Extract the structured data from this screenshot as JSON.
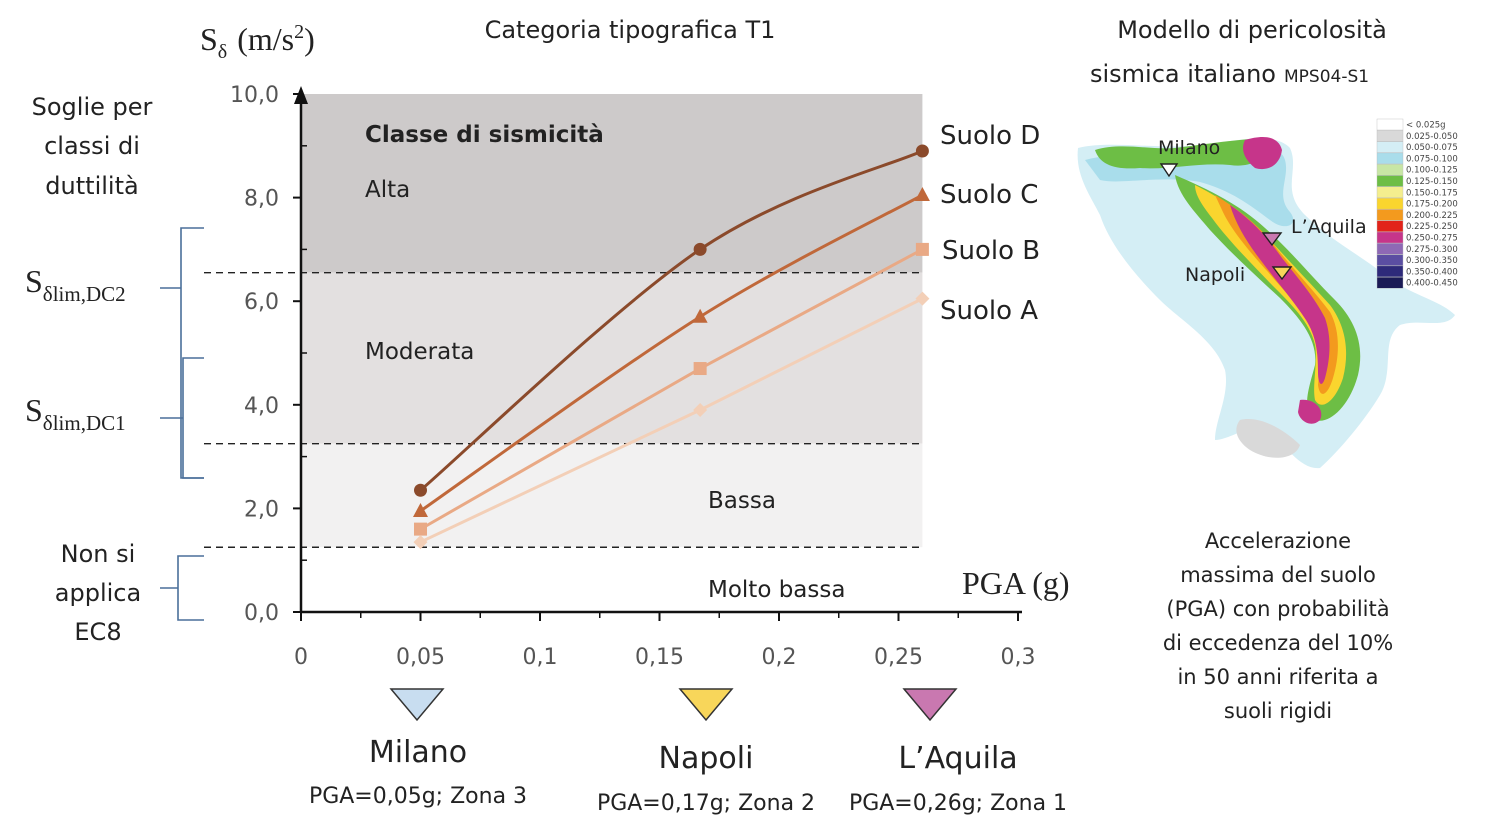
{
  "chart_data": {
    "type": "line",
    "title": "Categoria tipografica T1",
    "ylabel": "Sδ (m/s2)",
    "ylabel_parts": {
      "main": "S",
      "sub": "δ",
      "unit": "(m/s",
      "sup": "2",
      "close": ")"
    },
    "xlabel": "PGA (g)",
    "xlim": [
      0,
      0.3
    ],
    "ylim": [
      0,
      10
    ],
    "x_ticks": [
      0,
      0.05,
      0.1,
      0.15,
      0.2,
      0.25,
      0.3
    ],
    "x_tick_labels": [
      "0",
      "0,05",
      "0,1",
      "0,15",
      "0,2",
      "0,25",
      "0,3"
    ],
    "y_ticks": [
      0,
      2,
      4,
      6,
      8,
      10
    ],
    "y_tick_labels": [
      "0,0",
      "2,0",
      "4,0",
      "6,0",
      "8,0",
      "10,0"
    ],
    "x": [
      0.05,
      0.167,
      0.26
    ],
    "series": [
      {
        "name": "Suolo D",
        "values": [
          2.35,
          7.0,
          8.9
        ],
        "color": "#8B4A2B",
        "marker": "circle",
        "smooth": true
      },
      {
        "name": "Suolo C",
        "values": [
          1.95,
          5.7,
          8.05
        ],
        "color": "#C0683A",
        "marker": "triangle",
        "smooth": true
      },
      {
        "name": "Suolo B",
        "values": [
          1.6,
          4.7,
          7.0
        ],
        "color": "#E9A985",
        "marker": "square",
        "smooth": false
      },
      {
        "name": "Suolo A",
        "values": [
          1.35,
          3.9,
          6.05
        ],
        "color": "#F3CFB7",
        "marker": "diamond",
        "smooth": false
      }
    ],
    "bands": [
      {
        "label": "Alta",
        "from": 6.55,
        "to": 10,
        "color": "#CDCACA"
      },
      {
        "label": "Moderata",
        "from": 3.25,
        "to": 6.55,
        "color": "#E3E0E0"
      },
      {
        "label": "Bassa",
        "from": 1.25,
        "to": 3.25,
        "color": "#F2F1F1"
      },
      {
        "label": "Molto bassa",
        "from": 0,
        "to": 1.25,
        "color": "#FFFFFF"
      }
    ],
    "bands_heading": "Classe di sismicità",
    "thresholds": [
      6.55,
      3.25,
      1.25
    ],
    "grid": false
  },
  "left_panel": {
    "heading": [
      "Soglie per",
      "classi di",
      "duttilità"
    ],
    "dc2": {
      "main": "S",
      "sub": "δlim,DC2"
    },
    "dc1": {
      "main": "S",
      "sub": "δlim,DC1"
    },
    "not_applicable": [
      "Non si",
      "applica",
      "EC8"
    ]
  },
  "cities": [
    {
      "name": "Milano",
      "info": "PGA=0,05g; Zona 3",
      "color": "#C8DDF0"
    },
    {
      "name": "Napoli",
      "info": "PGA=0,17g; Zona 2",
      "color": "#F8D65A"
    },
    {
      "name": "L’Aquila",
      "info": "PGA=0,26g; Zona 1",
      "color": "#C978B0"
    }
  ],
  "map_panel": {
    "title_line1": "Modello di pericolosità",
    "title_line2": "sismica italiano",
    "title_model": "MPS04-S1",
    "city_labels": [
      "Milano",
      "L’Aquila",
      "Napoli"
    ],
    "legend": [
      {
        "label": "< 0.025g",
        "color": "#FFFFFF"
      },
      {
        "label": "0.025-0.050",
        "color": "#D9D9D9"
      },
      {
        "label": "0.050-0.075",
        "color": "#D4EEF5"
      },
      {
        "label": "0.075-0.100",
        "color": "#A9DDEB"
      },
      {
        "label": "0.100-0.125",
        "color": "#C8E6A5"
      },
      {
        "label": "0.125-0.150",
        "color": "#6DBE45"
      },
      {
        "label": "0.150-0.175",
        "color": "#F4EE8E"
      },
      {
        "label": "0.175-0.200",
        "color": "#FAD52E"
      },
      {
        "label": "0.200-0.225",
        "color": "#F39A1E"
      },
      {
        "label": "0.225-0.250",
        "color": "#E2231A"
      },
      {
        "label": "0.250-0.275",
        "color": "#C6358A"
      },
      {
        "label": "0.275-0.300",
        "color": "#8E69B5"
      },
      {
        "label": "0.300-0.350",
        "color": "#5B4EA2"
      },
      {
        "label": "0.350-0.400",
        "color": "#2E2A7A"
      },
      {
        "label": "0.400-0.450",
        "color": "#1A1A55"
      }
    ],
    "caption": [
      "Accelerazione",
      "massima del suolo",
      "(PGA) con probabilità",
      "di eccedenza del 10%",
      "in 50 anni riferita a",
      "suoli rigidi"
    ]
  }
}
